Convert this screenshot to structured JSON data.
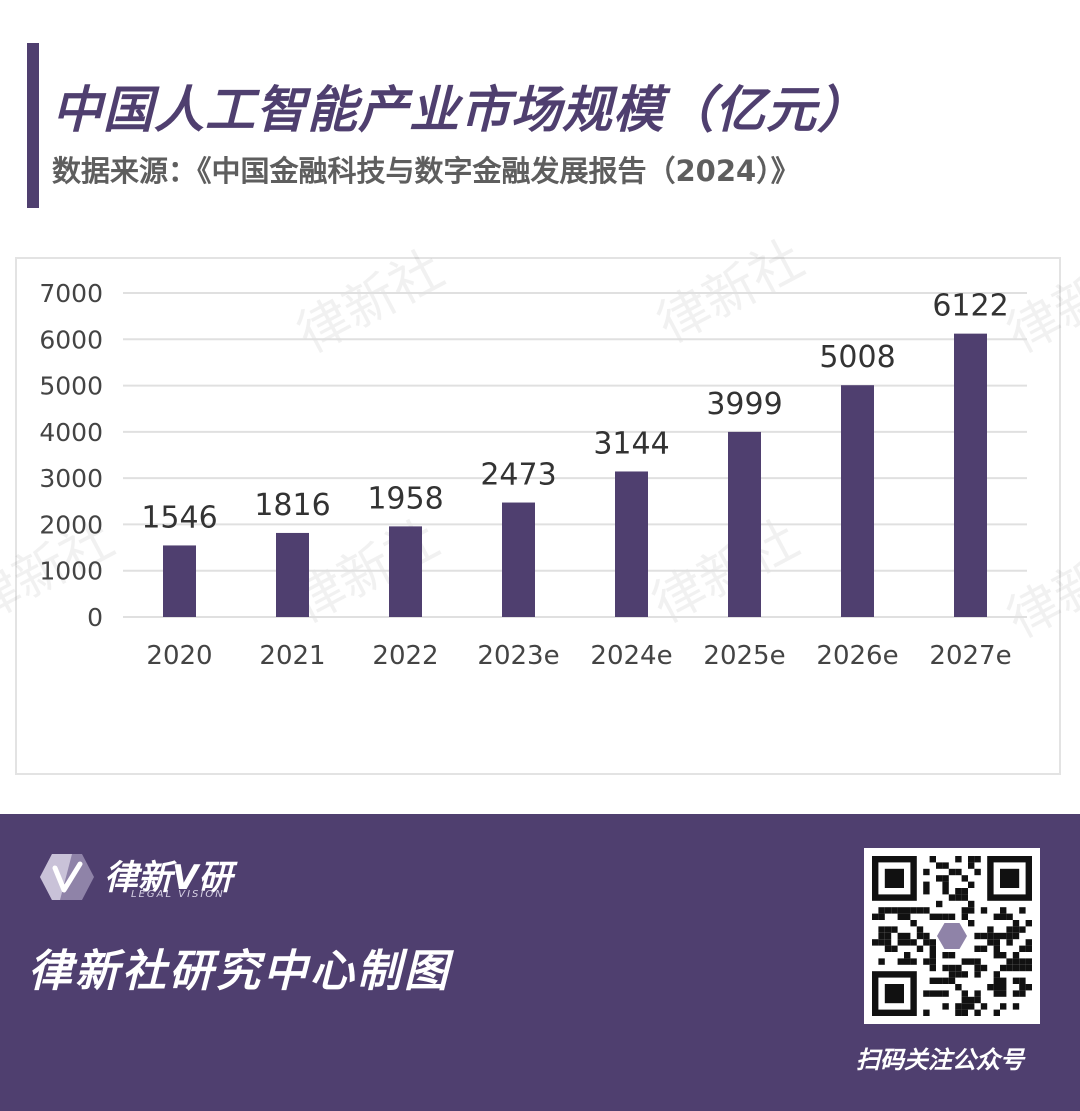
{
  "header": {
    "title": "中国人工智能产业市场规模（亿元）",
    "source": "数据来源：《中国金融科技与数字金融发展报告（2024）》"
  },
  "watermark_text": "律新社",
  "chart_data": {
    "type": "bar",
    "categories": [
      "2020",
      "2021",
      "2022",
      "2023e",
      "2024e",
      "2025e",
      "2026e",
      "2027e"
    ],
    "values": [
      1546,
      1816,
      1958,
      2473,
      3144,
      3999,
      5008,
      6122
    ],
    "yticks": [
      0,
      1000,
      2000,
      3000,
      4000,
      5000,
      6000,
      7000
    ],
    "ylim": [
      0,
      7000
    ],
    "grid": true,
    "bar_color": "#4f3f6f",
    "data_labels": true
  },
  "footer": {
    "logo_name": "律新V研",
    "logo_sub": "LEGAL VISION",
    "credit": "律新社研究中心制图",
    "qr_caption": "扫码关注公众号"
  },
  "colors": {
    "brand": "#4f3f6f",
    "grid": "#e0e0e0",
    "text": "#444444"
  }
}
